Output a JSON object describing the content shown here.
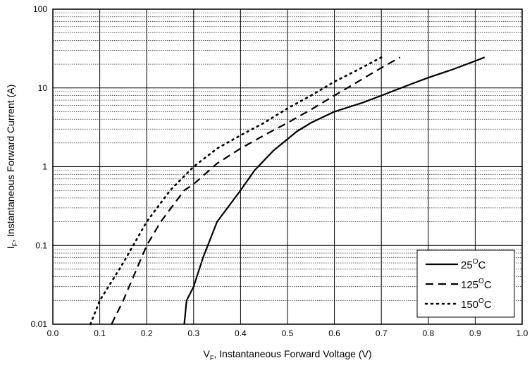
{
  "chart_data": {
    "type": "line",
    "title": "",
    "xlabel_main": "V",
    "xlabel_sub": "F",
    "xlabel_rest": ", Instantaneous Forward Voltage (V)",
    "ylabel_main": "I",
    "ylabel_sub": "F",
    "ylabel_rest": ", Instantaneous Forward Current (A)",
    "xlim": [
      0.0,
      1.0
    ],
    "ylim": [
      0.01,
      100
    ],
    "yscale": "log",
    "grid": true,
    "legend_position": "bottom-right",
    "x_ticks": [
      "0.0",
      "0.1",
      "0.2",
      "0.3",
      "0.4",
      "0.5",
      "0.6",
      "0.7",
      "0.8",
      "0.9",
      "1.0"
    ],
    "y_ticks": [
      "0.01",
      "0.1",
      "1",
      "10",
      "100"
    ],
    "series": [
      {
        "name": "25",
        "sup": "O",
        "unit": "C",
        "style": "solid",
        "x": [
          0.28,
          0.285,
          0.3,
          0.32,
          0.35,
          0.4,
          0.43,
          0.47,
          0.49,
          0.52,
          0.55,
          0.6,
          0.66,
          0.7,
          0.76,
          0.8,
          0.85,
          0.9,
          0.92
        ],
        "y": [
          0.01,
          0.02,
          0.03,
          0.07,
          0.2,
          0.5,
          0.9,
          1.6,
          2.0,
          2.8,
          3.6,
          5.0,
          6.5,
          8.0,
          11.0,
          13.5,
          17.0,
          22.0,
          24.5
        ]
      },
      {
        "name": "125",
        "sup": "O",
        "unit": "C",
        "style": "dashed",
        "x": [
          0.125,
          0.15,
          0.2,
          0.23,
          0.28,
          0.3,
          0.35,
          0.4,
          0.45,
          0.5,
          0.55,
          0.6,
          0.65,
          0.7,
          0.74
        ],
        "y": [
          0.01,
          0.02,
          0.1,
          0.2,
          0.5,
          0.6,
          1.1,
          1.7,
          2.5,
          3.6,
          5.3,
          8.0,
          12.0,
          18.0,
          24.5
        ]
      },
      {
        "name": "150",
        "sup": "O",
        "unit": "C",
        "style": "dotted",
        "x": [
          0.08,
          0.1,
          0.15,
          0.2,
          0.25,
          0.3,
          0.35,
          0.4,
          0.45,
          0.5,
          0.55,
          0.6,
          0.65,
          0.7
        ],
        "y": [
          0.01,
          0.02,
          0.06,
          0.2,
          0.5,
          1.0,
          1.7,
          2.5,
          3.6,
          5.5,
          8.0,
          12.0,
          17.0,
          24.5
        ]
      }
    ]
  }
}
